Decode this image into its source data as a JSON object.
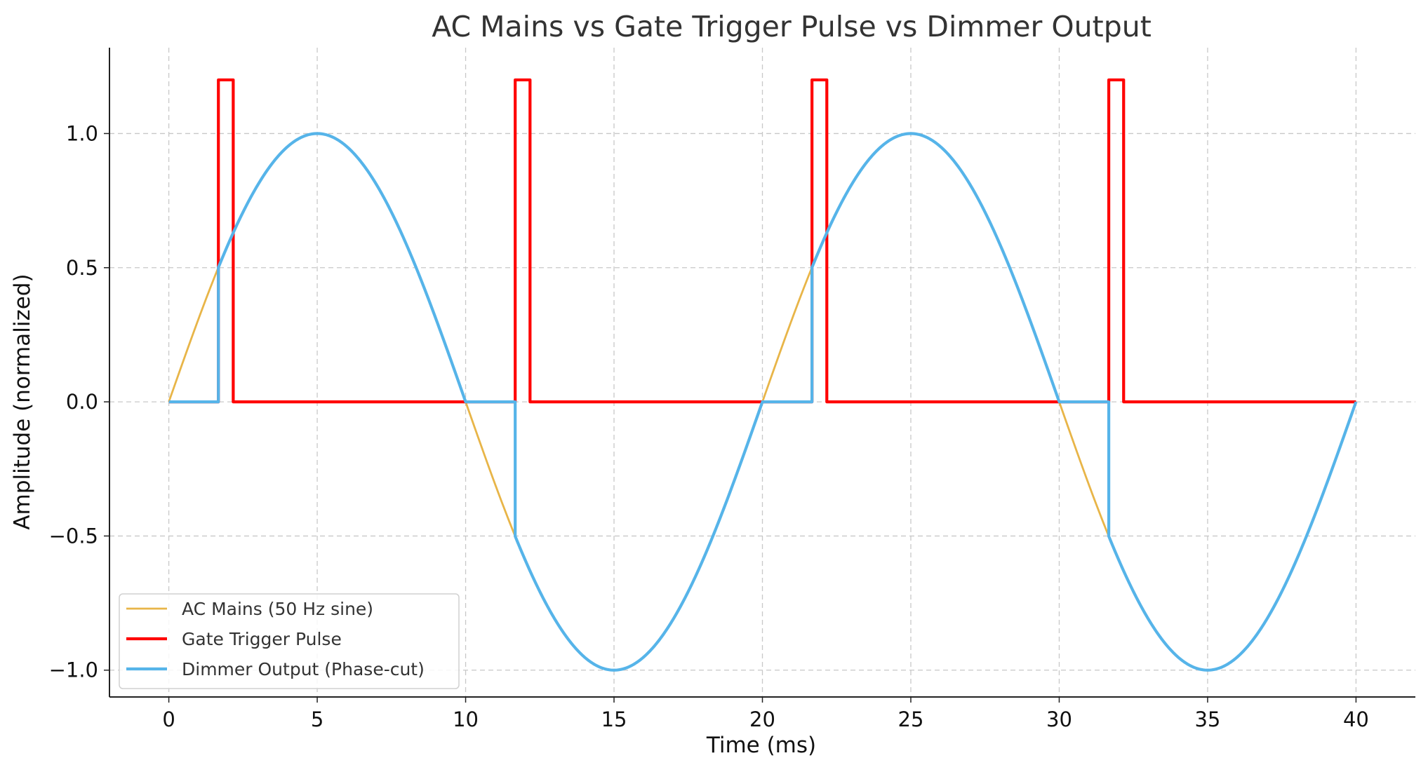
{
  "chart_data": {
    "type": "line",
    "title": "AC Mains vs Gate Trigger Pulse vs Dimmer Output",
    "xlabel": "Time (ms)",
    "ylabel": "Amplitude (normalized)",
    "xlim": [
      -2,
      42
    ],
    "ylim": [
      -1.1,
      1.32
    ],
    "xticks": [
      0,
      5,
      10,
      15,
      20,
      25,
      30,
      35,
      40
    ],
    "xtick_labels": [
      "0",
      "5",
      "10",
      "15",
      "20",
      "25",
      "30",
      "35",
      "40"
    ],
    "yticks": [
      -1.0,
      -0.5,
      0.0,
      0.5,
      1.0
    ],
    "ytick_labels": [
      "−1.0",
      "−0.5",
      "0.0",
      "0.5",
      "1.0"
    ],
    "grid": true,
    "legend_position": "bottom-left",
    "series": [
      {
        "name": "AC Mains (50 Hz sine)",
        "color": "#E8B548",
        "kind": "sine",
        "frequency_hz": 50,
        "amplitude": 1.0,
        "x_range": [
          0,
          40
        ]
      },
      {
        "name": "Gate Trigger Pulse",
        "color": "#FF0000",
        "kind": "pulse",
        "high": 1.2,
        "low": 0.0,
        "pulses": [
          [
            1.67,
            2.17
          ],
          [
            11.67,
            12.17
          ],
          [
            21.67,
            22.17
          ],
          [
            31.67,
            32.17
          ]
        ],
        "x_range": [
          0,
          40
        ]
      },
      {
        "name": "Dimmer Output (Phase-cut)",
        "color": "#56B4E9",
        "kind": "phase-cut",
        "frequency_hz": 50,
        "amplitude": 1.0,
        "conduction_starts": [
          1.67,
          11.67,
          21.67,
          31.67
        ],
        "x_range": [
          0,
          40
        ]
      }
    ]
  }
}
